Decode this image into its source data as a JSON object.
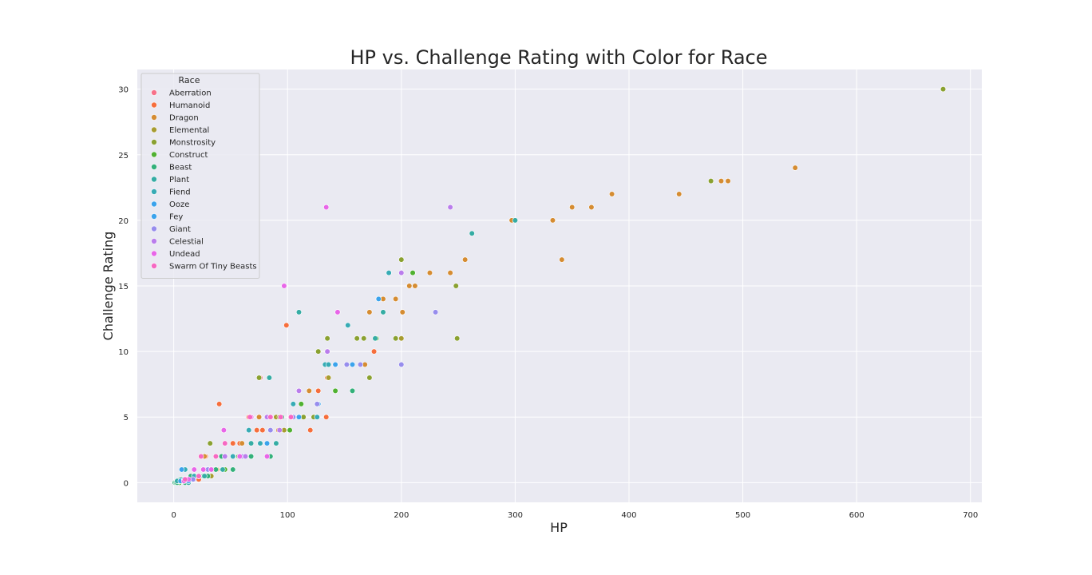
{
  "chart_data": {
    "type": "scatter",
    "title": "HP vs. Challenge Rating with Color for Race",
    "xlabel": "HP",
    "ylabel": "Challenge Rating",
    "xlim": [
      -32,
      710
    ],
    "ylim": [
      -1.5,
      31.5
    ],
    "xticks": [
      0,
      100,
      200,
      300,
      400,
      500,
      600,
      700
    ],
    "yticks": [
      0,
      5,
      10,
      15,
      20,
      25,
      30
    ],
    "grid": true,
    "legend_title": "Race",
    "legend_position": "top-left",
    "series": [
      {
        "name": "Aberration",
        "color": "#f77189",
        "points": [
          [
            13,
            0.25
          ],
          [
            22,
            0.5
          ],
          [
            28,
            1
          ],
          [
            45,
            2
          ],
          [
            67,
            5
          ],
          [
            76,
            8
          ],
          [
            135,
            10
          ]
        ]
      },
      {
        "name": "Humanoid",
        "color": "#f66e3c",
        "points": [
          [
            3,
            0
          ],
          [
            9,
            0.125
          ],
          [
            11,
            0.125
          ],
          [
            16,
            0.25
          ],
          [
            22,
            0.25
          ],
          [
            27,
            0.5
          ],
          [
            32,
            1
          ],
          [
            28,
            2
          ],
          [
            40,
            6
          ],
          [
            52,
            3
          ],
          [
            58,
            3
          ],
          [
            66,
            5
          ],
          [
            73,
            4
          ],
          [
            78,
            4
          ],
          [
            99,
            12
          ],
          [
            112,
            6
          ],
          [
            120,
            4
          ],
          [
            127,
            7
          ],
          [
            134,
            5
          ],
          [
            135,
            8
          ],
          [
            176,
            10
          ]
        ]
      },
      {
        "name": "Dragon",
        "color": "#d58c32",
        "points": [
          [
            9,
            0.25
          ],
          [
            15,
            0.5
          ],
          [
            27,
            2
          ],
          [
            38,
            1
          ],
          [
            45,
            2
          ],
          [
            60,
            3
          ],
          [
            75,
            5
          ],
          [
            92,
            4
          ],
          [
            119,
            7
          ],
          [
            136,
            8
          ],
          [
            142,
            9
          ],
          [
            152,
            9
          ],
          [
            168,
            9
          ],
          [
            172,
            13
          ],
          [
            178,
            11
          ],
          [
            184,
            14
          ],
          [
            195,
            14
          ],
          [
            201,
            13
          ],
          [
            207,
            15
          ],
          [
            212,
            15
          ],
          [
            225,
            16
          ],
          [
            243,
            16
          ],
          [
            256,
            17
          ],
          [
            297,
            20
          ],
          [
            333,
            20
          ],
          [
            341,
            17
          ],
          [
            350,
            21
          ],
          [
            367,
            21
          ],
          [
            385,
            22
          ],
          [
            444,
            22
          ],
          [
            481,
            23
          ],
          [
            487,
            23
          ],
          [
            546,
            24
          ]
        ]
      },
      {
        "name": "Elemental",
        "color": "#a79c30",
        "points": [
          [
            22,
            0.5
          ],
          [
            33,
            0.5
          ],
          [
            52,
            2
          ],
          [
            90,
            5
          ],
          [
            97,
            4
          ],
          [
            104,
            5
          ],
          [
            114,
            5
          ],
          [
            126,
            6
          ],
          [
            127,
            6
          ],
          [
            136,
            8
          ],
          [
            161,
            11
          ],
          [
            200,
            11
          ]
        ]
      },
      {
        "name": "Monstrosity",
        "color": "#8aa131",
        "points": [
          [
            11,
            0.25
          ],
          [
            19,
            0.5
          ],
          [
            26,
            1
          ],
          [
            32,
            3
          ],
          [
            45,
            2
          ],
          [
            58,
            2
          ],
          [
            68,
            2
          ],
          [
            75,
            8
          ],
          [
            93,
            5
          ],
          [
            110,
            5
          ],
          [
            114,
            5
          ],
          [
            123,
            5
          ],
          [
            127,
            10
          ],
          [
            135,
            11
          ],
          [
            161,
            11
          ],
          [
            167,
            11
          ],
          [
            172,
            8
          ],
          [
            195,
            11
          ],
          [
            200,
            17
          ],
          [
            248,
            15
          ],
          [
            249,
            11
          ],
          [
            472,
            23
          ],
          [
            676,
            30
          ]
        ]
      },
      {
        "name": "Construct",
        "color": "#50b131",
        "points": [
          [
            5,
            0
          ],
          [
            10,
            0.25
          ],
          [
            18,
            0.5
          ],
          [
            33,
            1
          ],
          [
            36,
            1
          ],
          [
            45,
            1
          ],
          [
            57,
            2
          ],
          [
            68,
            2
          ],
          [
            76,
            3
          ],
          [
            95,
            5
          ],
          [
            102,
            4
          ],
          [
            112,
            6
          ],
          [
            142,
            7
          ],
          [
            178,
            11
          ],
          [
            210,
            16
          ]
        ]
      },
      {
        "name": "Beast",
        "color": "#33b07a",
        "points": [
          [
            1,
            0
          ],
          [
            2,
            0
          ],
          [
            3,
            0
          ],
          [
            4,
            0.125
          ],
          [
            5,
            0.125
          ],
          [
            6,
            0.25
          ],
          [
            7,
            0.25
          ],
          [
            8,
            0.125
          ],
          [
            10,
            0
          ],
          [
            13,
            0.25
          ],
          [
            15,
            0.5
          ],
          [
            18,
            0.5
          ],
          [
            22,
            0.5
          ],
          [
            26,
            0.5
          ],
          [
            30,
            0.5
          ],
          [
            34,
            1
          ],
          [
            37,
            1
          ],
          [
            42,
            2
          ],
          [
            52,
            1
          ],
          [
            62,
            2
          ],
          [
            68,
            2
          ],
          [
            85,
            2
          ],
          [
            95,
            5
          ],
          [
            126,
            5
          ],
          [
            157,
            7
          ]
        ]
      },
      {
        "name": "Plant",
        "color": "#35aca4",
        "points": [
          [
            3,
            0.125
          ],
          [
            9,
            0.25
          ],
          [
            13,
            0
          ],
          [
            27,
            0.5
          ],
          [
            43,
            1
          ],
          [
            68,
            3
          ],
          [
            84,
            8
          ],
          [
            90,
            3
          ],
          [
            110,
            13
          ],
          [
            177,
            11
          ],
          [
            184,
            13
          ],
          [
            189,
            16
          ],
          [
            262,
            19
          ],
          [
            300,
            20
          ]
        ]
      },
      {
        "name": "Fiend",
        "color": "#37abb5",
        "points": [
          [
            10,
            1
          ],
          [
            18,
            0.5
          ],
          [
            27,
            1
          ],
          [
            52,
            2
          ],
          [
            66,
            4
          ],
          [
            76,
            3
          ],
          [
            105,
            6
          ],
          [
            126,
            5
          ],
          [
            133,
            9
          ],
          [
            136,
            9
          ],
          [
            153,
            12
          ],
          [
            180,
            14
          ],
          [
            189,
            16
          ]
        ]
      },
      {
        "name": "Ooze",
        "color": "#3ba3ec",
        "points": [
          [
            7,
            1
          ],
          [
            10,
            0.25
          ],
          [
            22,
            0.5
          ],
          [
            45,
            2
          ],
          [
            58,
            2
          ],
          [
            82,
            3
          ],
          [
            110,
            5
          ],
          [
            127,
            6
          ],
          [
            142,
            9
          ],
          [
            157,
            9
          ],
          [
            164,
            9
          ],
          [
            180,
            14
          ]
        ]
      },
      {
        "name": "Fey",
        "color": "#3ba3ec",
        "points": [
          [
            6,
            0.125
          ],
          [
            9,
            0.25
          ],
          [
            13,
            0.125
          ]
        ]
      },
      {
        "name": "Giant",
        "color": "#978ded",
        "points": [
          [
            17,
            0.25
          ],
          [
            30,
            1
          ],
          [
            60,
            2
          ],
          [
            85,
            4
          ],
          [
            105,
            5
          ],
          [
            110,
            7
          ],
          [
            126,
            6
          ],
          [
            152,
            9
          ],
          [
            164,
            9
          ],
          [
            200,
            9
          ],
          [
            230,
            13
          ]
        ]
      },
      {
        "name": "Celestial",
        "color": "#ba7dec",
        "points": [
          [
            22,
            0.5
          ],
          [
            45,
            2
          ],
          [
            63,
            2
          ],
          [
            82,
            5
          ],
          [
            93,
            4
          ],
          [
            110,
            7
          ],
          [
            135,
            10
          ],
          [
            200,
            16
          ],
          [
            243,
            21
          ]
        ]
      },
      {
        "name": "Undead",
        "color": "#e866e8",
        "points": [
          [
            9,
            0.125
          ],
          [
            13,
            0.25
          ],
          [
            18,
            1
          ],
          [
            22,
            0.5
          ],
          [
            26,
            1
          ],
          [
            33,
            1
          ],
          [
            44,
            4
          ],
          [
            58,
            2
          ],
          [
            68,
            5
          ],
          [
            82,
            2
          ],
          [
            85,
            5
          ],
          [
            97,
            15
          ],
          [
            134,
            21
          ],
          [
            144,
            13
          ]
        ]
      },
      {
        "name": "Swarm Of Tiny Beasts",
        "color": "#f668c2",
        "points": [
          [
            10,
            0.25
          ],
          [
            22,
            0.5
          ],
          [
            24,
            2
          ],
          [
            37,
            2
          ],
          [
            45,
            3
          ],
          [
            67,
            5
          ],
          [
            85,
            5
          ],
          [
            94,
            5
          ],
          [
            103,
            5
          ]
        ]
      }
    ]
  }
}
